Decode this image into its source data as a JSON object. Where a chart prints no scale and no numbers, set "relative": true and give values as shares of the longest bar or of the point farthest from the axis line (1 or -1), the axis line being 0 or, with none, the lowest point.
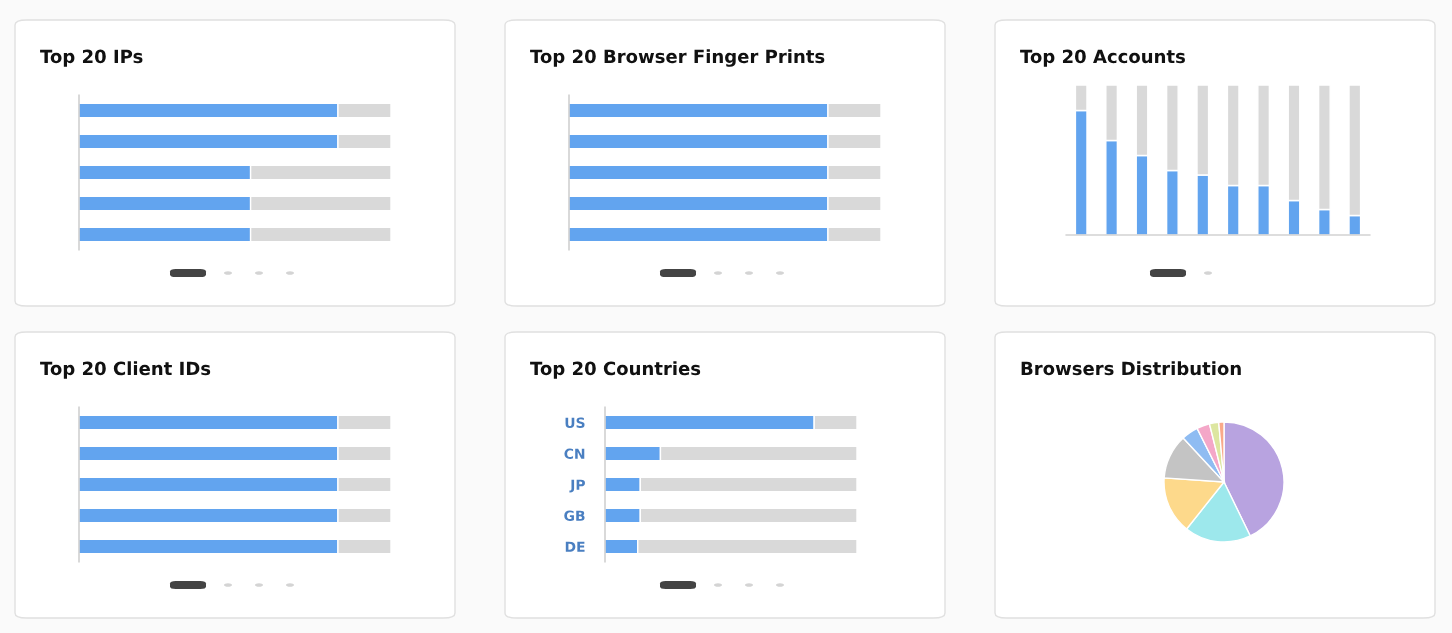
{
  "chart_data": [
    {
      "type": "bar",
      "title": "Top 20 IPs",
      "orientation": "horizontal",
      "stacked": true,
      "relative": true,
      "categories": [
        null,
        null,
        null,
        null,
        null
      ],
      "series": [
        {
          "color": "#62a4ef",
          "values": [
            0.83,
            0.83,
            0.55,
            0.55,
            0.55
          ]
        },
        {
          "color": "#d9d9d9",
          "values": [
            0.17,
            0.17,
            0.45,
            0.45,
            0.45
          ]
        }
      ]
    },
    {
      "type": "bar",
      "title": "Top 20 Browser Finger Prints",
      "orientation": "horizontal",
      "stacked": true,
      "relative": true,
      "categories": [
        null,
        null,
        null,
        null,
        null
      ],
      "series": [
        {
          "color": "#62a4ef",
          "values": [
            0.83,
            0.83,
            0.83,
            0.83,
            0.83
          ]
        },
        {
          "color": "#d9d9d9",
          "values": [
            0.17,
            0.17,
            0.17,
            0.17,
            0.17
          ]
        }
      ]
    },
    {
      "type": "bar",
      "title": "Top 20 Accounts",
      "stacked": true,
      "relative": true,
      "categories": [
        null,
        null,
        null,
        null,
        null,
        null,
        null,
        null,
        null,
        null
      ],
      "series": [
        {
          "color": "#62a4ef",
          "values": [
            0.83,
            0.63,
            0.53,
            0.43,
            0.4,
            0.33,
            0.33,
            0.23,
            0.17,
            0.13
          ]
        },
        {
          "color": "#d9d9d9",
          "values": [
            0.17,
            0.37,
            0.47,
            0.57,
            0.6,
            0.67,
            0.67,
            0.77,
            0.83,
            0.87
          ]
        }
      ]
    },
    {
      "type": "bar",
      "title": "Top 20 Client IDs",
      "orientation": "horizontal",
      "stacked": true,
      "relative": true,
      "categories": [
        null,
        null,
        null,
        null,
        null
      ],
      "series": [
        {
          "color": "#62a4ef",
          "values": [
            0.83,
            0.83,
            0.83,
            0.83,
            0.83
          ]
        },
        {
          "color": "#d9d9d9",
          "values": [
            0.17,
            0.17,
            0.17,
            0.17,
            0.17
          ]
        }
      ]
    },
    {
      "type": "bar",
      "title": "Top 20 Countries",
      "orientation": "horizontal",
      "stacked": true,
      "relative": true,
      "categories": [
        "US",
        "CN",
        "JP",
        "GB",
        "DE"
      ],
      "series": [
        {
          "color": "#62a4ef",
          "values": [
            0.83,
            0.22,
            0.14,
            0.14,
            0.13
          ]
        },
        {
          "color": "#d9d9d9",
          "values": [
            0.17,
            0.78,
            0.86,
            0.86,
            0.87
          ]
        }
      ]
    },
    {
      "type": "pie",
      "title": "Browsers Distribution",
      "categories": [
        null,
        null,
        null,
        null,
        null,
        null,
        null,
        null
      ],
      "values": [
        42.8,
        17.9,
        15.4,
        12.0,
        4.5,
        3.5,
        2.5,
        1.4
      ],
      "colors": [
        "#b8a3e0",
        "#9de8ec",
        "#fdd98b",
        "#c4c4c4",
        "#8fbcf2",
        "#f4a7c8",
        "#dde6a0",
        "#f9a98a"
      ]
    }
  ]
}
